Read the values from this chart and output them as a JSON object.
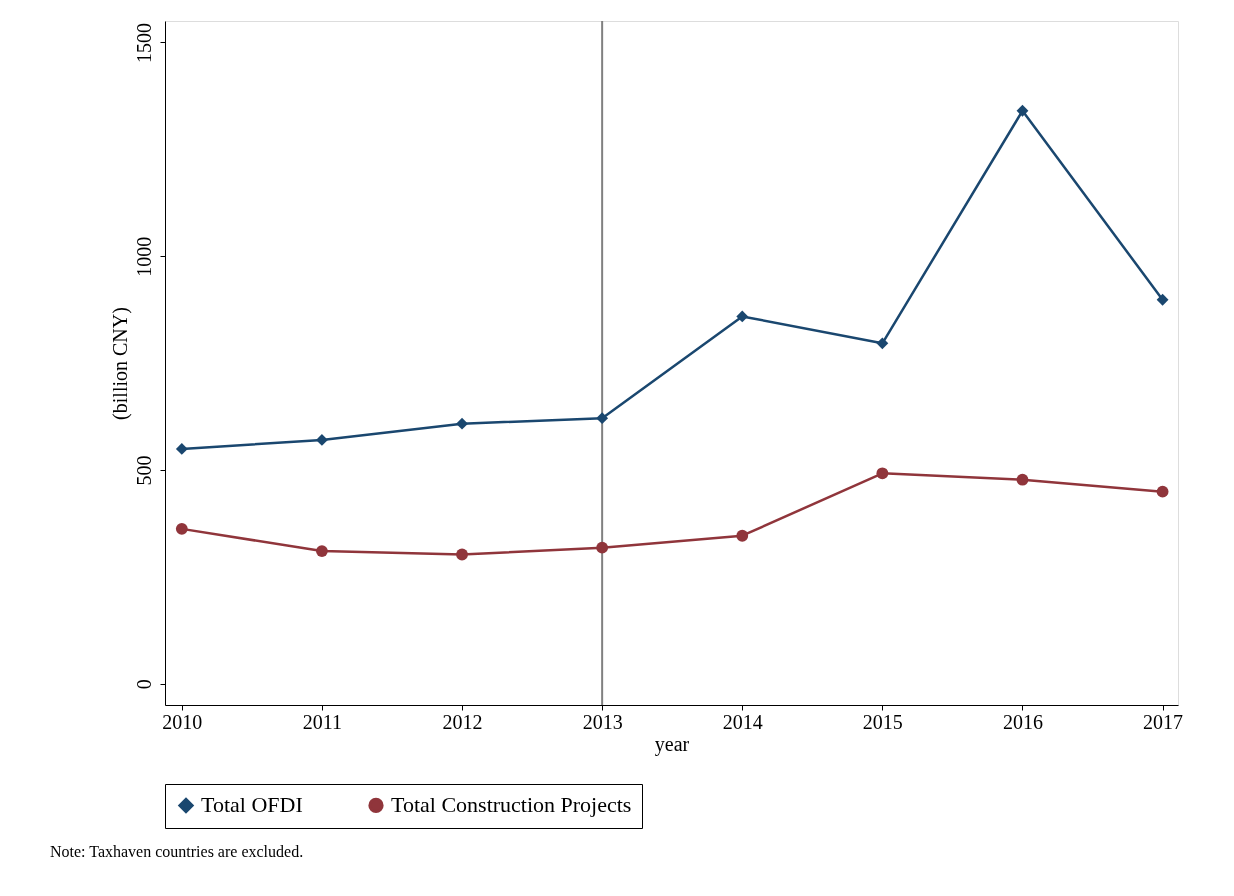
{
  "chart_data": {
    "type": "line",
    "xlabel": "year",
    "ylabel": "(billion CNY)",
    "x": [
      2010,
      2011,
      2012,
      2013,
      2014,
      2015,
      2016,
      2017
    ],
    "series": [
      {
        "name": "Total OFDI",
        "color": "#1a476f",
        "marker": "diamond",
        "values": [
          549,
          570,
          608,
          621,
          859,
          796,
          1340,
          898
        ]
      },
      {
        "name": "Total Construction Projects",
        "color": "#90353b",
        "marker": "circle",
        "values": [
          362,
          310,
          302,
          318,
          346,
          492,
          477,
          449
        ]
      }
    ],
    "xlim": [
      2009.88,
      2017.11
    ],
    "xticks": [
      2010,
      2011,
      2012,
      2013,
      2014,
      2015,
      2016,
      2017
    ],
    "ylim": [
      -50,
      1550
    ],
    "yticks": [
      0,
      500,
      1000,
      1500
    ],
    "ref_lines": [
      {
        "axis": "x",
        "value": 2013,
        "color": "#808080"
      }
    ],
    "grid": false,
    "legend": "bottom",
    "line_style": "solid",
    "annotations": [
      "Note: Taxhaven countries are excluded."
    ]
  }
}
